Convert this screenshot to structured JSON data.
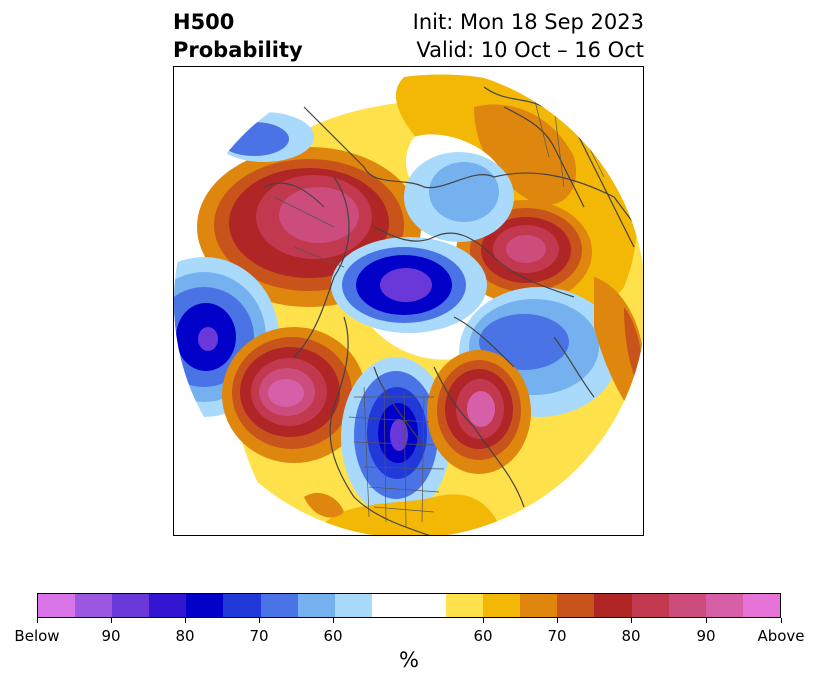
{
  "header": {
    "left_line1": "H500",
    "left_line2": "Probability",
    "right_line1": "Init: Mon 18 Sep 2023",
    "right_line2": "Valid: 10 Oct – 16 Oct"
  },
  "colorbar": {
    "colors": [
      "#d873e8",
      "#9b57e0",
      "#6a38d9",
      "#3415d1",
      "#0000c9",
      "#2239d9",
      "#4a74e6",
      "#76b1ef",
      "#a9dafb",
      "#ffffff",
      "#ffe14c",
      "#f3b705",
      "#df860e",
      "#c8541b",
      "#b02525",
      "#c2384e",
      "#cc4c7d",
      "#d65fa8",
      "#e674d8"
    ],
    "tick_labels": [
      "Below",
      "90",
      "80",
      "70",
      "60",
      "60",
      "70",
      "80",
      "90",
      "Above"
    ],
    "units": "%"
  },
  "map": {
    "projection": "north-polar-stereographic",
    "features": [
      "coastlines",
      "country-borders",
      "us-state-borders"
    ]
  }
}
